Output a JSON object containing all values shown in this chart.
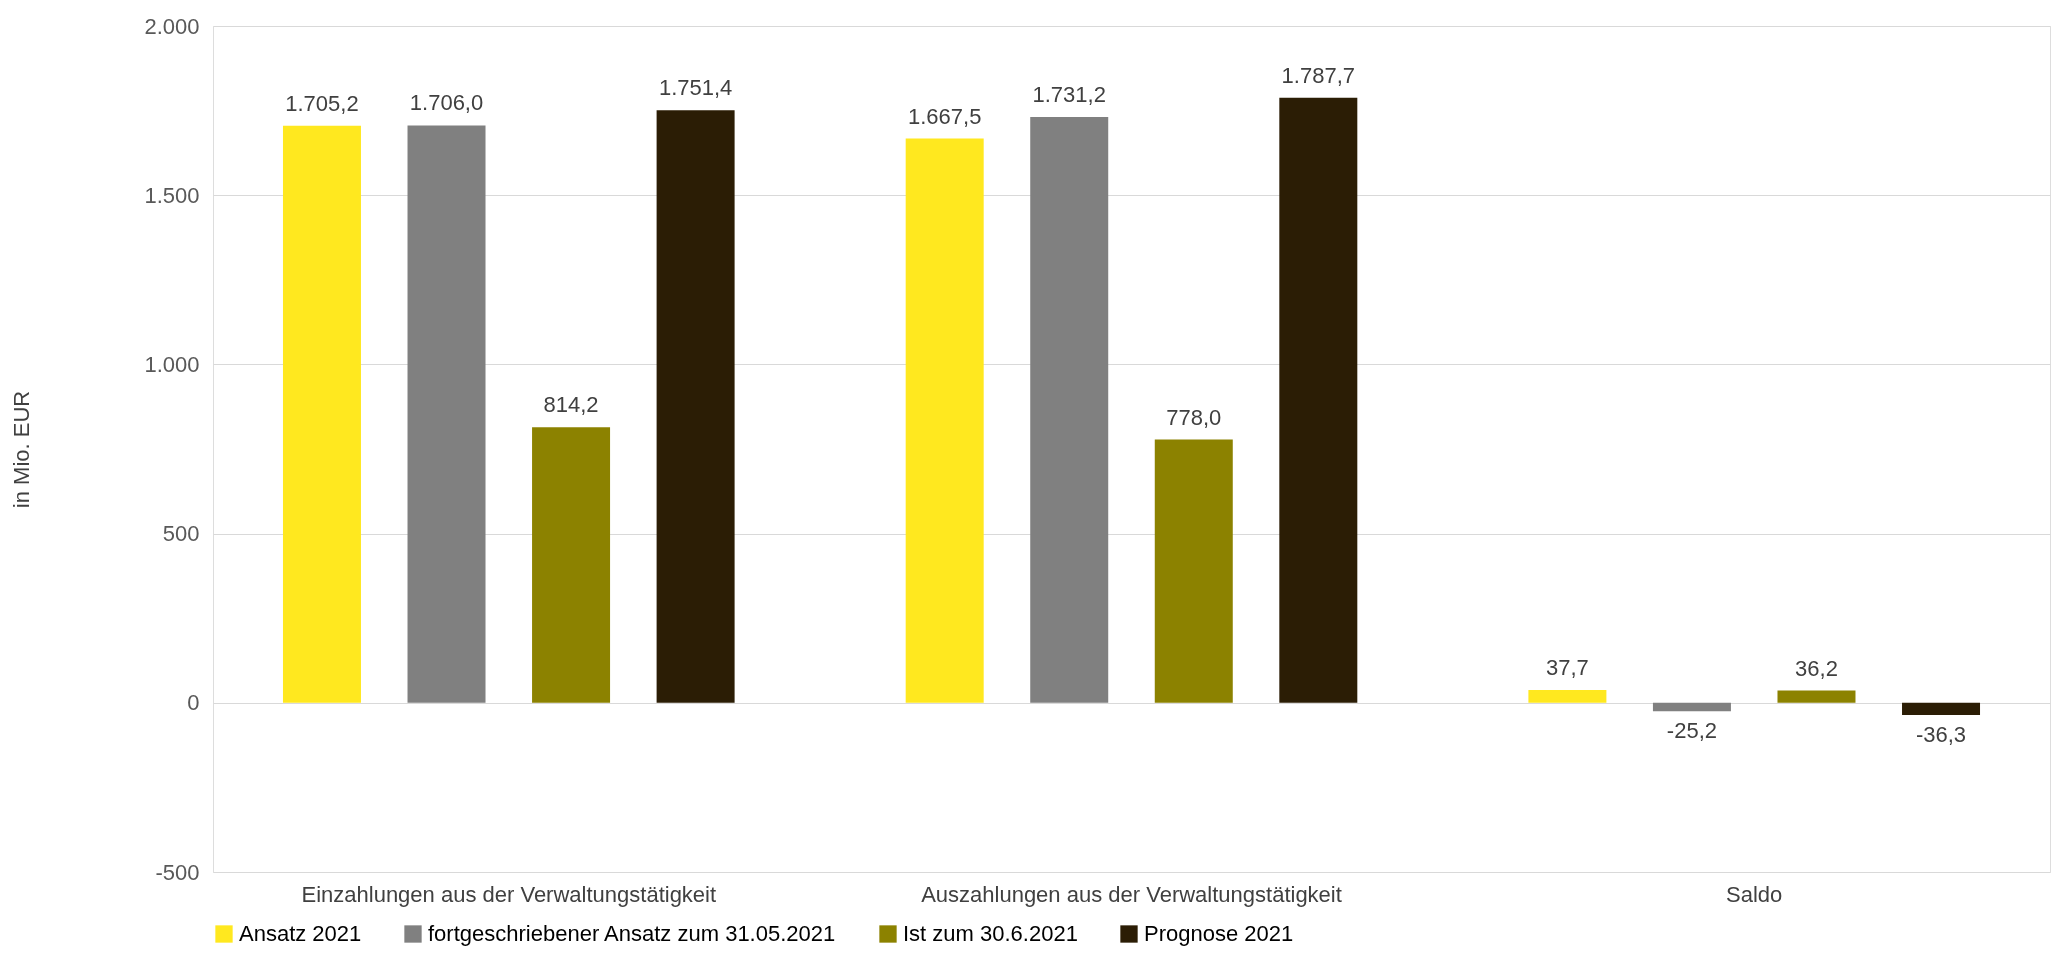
{
  "chart_data": {
    "type": "bar",
    "categories": [
      "Einzahlungen aus der Verwaltungstätigkeit",
      "Auszahlungen aus der Verwaltungstätigkeit",
      "Saldo"
    ],
    "ylabel": "in Mio. EUR",
    "ylim": [
      -500,
      2000
    ],
    "yticks": [
      {
        "value": -500,
        "label": "-500"
      },
      {
        "value": 0,
        "label": "0"
      },
      {
        "value": 500,
        "label": "500"
      },
      {
        "value": 1000,
        "label": "1.000"
      },
      {
        "value": 1500,
        "label": "1.500"
      },
      {
        "value": 2000,
        "label": "2.000"
      }
    ],
    "grid": "y",
    "legend": "bottom",
    "series": [
      {
        "name": "Ansatz 2021",
        "color": "#ffe81f",
        "values": [
          1705.2,
          1667.5,
          37.7
        ],
        "value_labels": [
          "1.705,2",
          "1.667,5",
          "37,7"
        ]
      },
      {
        "name": "fortgeschriebener Ansatz zum 31.05.2021",
        "color": "#808080",
        "values": [
          1706.0,
          1731.2,
          -25.2
        ],
        "value_labels": [
          "1.706,0",
          "1.731,2",
          "-25,2"
        ]
      },
      {
        "name": "Ist zum 30.6.2021",
        "color": "#8c8200",
        "values": [
          814.2,
          778.0,
          36.2
        ],
        "value_labels": [
          "814,2",
          "778,0",
          "36,2"
        ]
      },
      {
        "name": "Prognose 2021",
        "color": "#2b1d05",
        "values": [
          1751.4,
          1787.7,
          -36.3
        ],
        "value_labels": [
          "1.751,4",
          "1.787,7",
          "-36,3"
        ]
      }
    ]
  }
}
